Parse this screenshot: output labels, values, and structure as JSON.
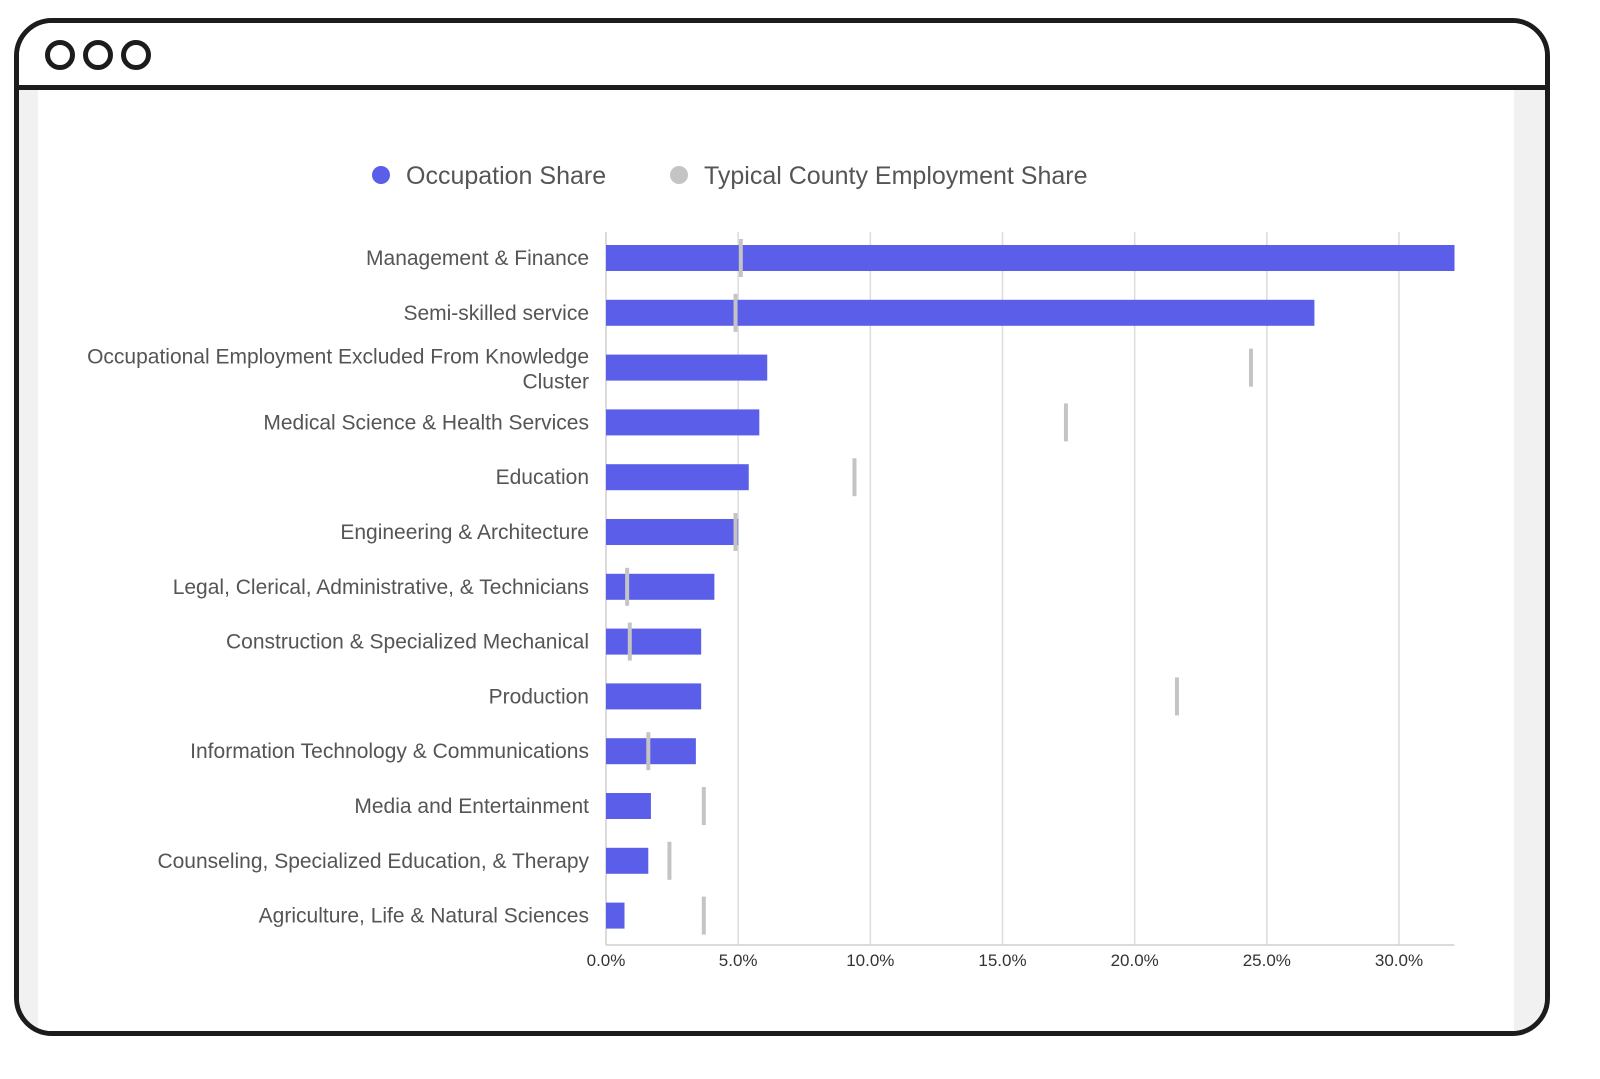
{
  "window": {
    "controls": [
      "dot-icon",
      "dot-icon",
      "dot-icon"
    ]
  },
  "chart_data": {
    "type": "bar",
    "orientation": "horizontal",
    "categories": [
      "Management & Finance",
      "Semi-skilled service",
      "Occupational Employment Excluded From Knowledge Cluster",
      "Medical Science & Health Services",
      "Education",
      "Engineering & Architecture",
      "Legal, Clerical, Administrative, & Technicians",
      "Construction & Specialized Mechanical",
      "Production",
      "Information Technology & Communications",
      "Media and Entertainment",
      "Counseling, Specialized Education, & Therapy",
      "Agriculture, Life & Natural Sciences"
    ],
    "series": [
      {
        "name": "Occupation Share",
        "color": "#5b5ee9",
        "mark": "bar",
        "values": [
          32.1,
          26.8,
          6.1,
          5.8,
          5.4,
          5.0,
          4.1,
          3.6,
          3.6,
          3.4,
          1.7,
          1.6,
          0.7
        ]
      },
      {
        "name": "Typical County Employment Share",
        "color": "#c4c4c4",
        "mark": "tick",
        "values": [
          5.1,
          4.9,
          24.4,
          17.4,
          9.4,
          4.9,
          0.8,
          0.9,
          21.6,
          1.6,
          3.7,
          2.4,
          3.7
        ]
      }
    ],
    "xlim": [
      0,
      32.1
    ],
    "xticks": [
      "0.0%",
      "5.0%",
      "10.0%",
      "15.0%",
      "20.0%",
      "25.0%",
      "30.0%"
    ],
    "xtick_values": [
      0,
      5,
      10,
      15,
      20,
      25,
      30
    ],
    "grid": true,
    "legend": "top-center"
  }
}
